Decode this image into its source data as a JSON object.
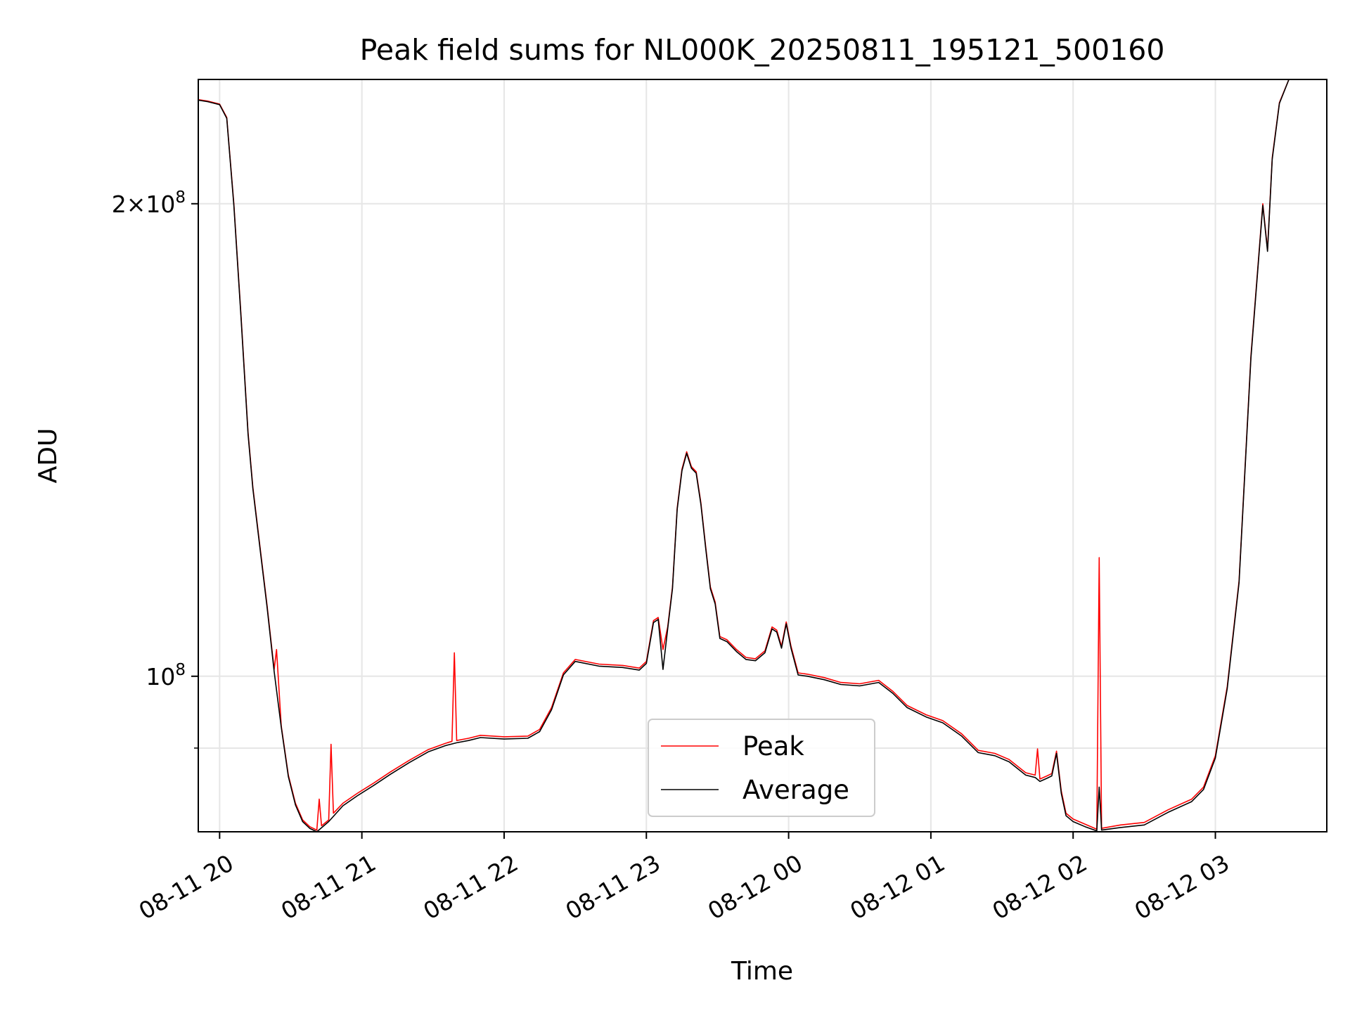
{
  "chart_data": {
    "type": "line",
    "title": "Peak field sums for NL000K_20250811_195121_500160",
    "xlabel": "Time",
    "ylabel": "ADU",
    "y_scale": "log",
    "ylim": [
      79600000,
      240000000
    ],
    "xlim": [
      "2025-08-11 19:51",
      "2025-08-12 03:47"
    ],
    "grid": true,
    "legend_position": "lower center",
    "x_tick_labels": [
      "08-11 20",
      "08-11 21",
      "08-11 22",
      "08-11 23",
      "08-12 00",
      "08-12 01",
      "08-12 02",
      "08-12 03"
    ],
    "x_tick_times": [
      "2025-08-11 20:00",
      "2025-08-11 21:00",
      "2025-08-11 22:00",
      "2025-08-11 23:00",
      "2025-08-12 00:00",
      "2025-08-12 01:00",
      "2025-08-12 02:00",
      "2025-08-12 03:00"
    ],
    "y_major_ticks": [
      {
        "value": 200000000,
        "base": "2×10",
        "exp": "8"
      },
      {
        "value": 100000000,
        "base": "10",
        "exp": "8"
      }
    ],
    "y_minor_ticks": [
      90000000
    ],
    "series": [
      {
        "name": "Peak",
        "color": "#ff0000",
        "points": [
          [
            "2025-08-11 19:51",
            233000000
          ],
          [
            "2025-08-11 19:55",
            232500000
          ],
          [
            "2025-08-11 20:00",
            231500000
          ],
          [
            "2025-08-11 20:03",
            227000000
          ],
          [
            "2025-08-11 20:06",
            200000000
          ],
          [
            "2025-08-11 20:09",
            170000000
          ],
          [
            "2025-08-11 20:12",
            143000000
          ],
          [
            "2025-08-11 20:14",
            132000000
          ],
          [
            "2025-08-11 20:17",
            121000000
          ],
          [
            "2025-08-11 20:20",
            111000000
          ],
          [
            "2025-08-11 20:23",
            101000000
          ],
          [
            "2025-08-11 20:24",
            104000000
          ],
          [
            "2025-08-11 20:26",
            93000000
          ],
          [
            "2025-08-11 20:29",
            86500000
          ],
          [
            "2025-08-11 20:32",
            83000000
          ],
          [
            "2025-08-11 20:35",
            81000000
          ],
          [
            "2025-08-11 20:38",
            80200000
          ],
          [
            "2025-08-11 20:41",
            79800000
          ],
          [
            "2025-08-11 20:42",
            83500000
          ],
          [
            "2025-08-11 20:43",
            80300000
          ],
          [
            "2025-08-11 20:46",
            81000000
          ],
          [
            "2025-08-11 20:47",
            90500000
          ],
          [
            "2025-08-11 20:48",
            81800000
          ],
          [
            "2025-08-11 20:52",
            83000000
          ],
          [
            "2025-08-11 20:58",
            84200000
          ],
          [
            "2025-08-11 21:05",
            85500000
          ],
          [
            "2025-08-11 21:12",
            86900000
          ],
          [
            "2025-08-11 21:20",
            88400000
          ],
          [
            "2025-08-11 21:28",
            89800000
          ],
          [
            "2025-08-11 21:35",
            90600000
          ],
          [
            "2025-08-11 21:38",
            90900000
          ],
          [
            "2025-08-11 21:39",
            103500000
          ],
          [
            "2025-08-11 21:40",
            91000000
          ],
          [
            "2025-08-11 21:45",
            91300000
          ],
          [
            "2025-08-11 21:50",
            91700000
          ],
          [
            "2025-08-11 22:00",
            91500000
          ],
          [
            "2025-08-11 22:10",
            91600000
          ],
          [
            "2025-08-11 22:15",
            92500000
          ],
          [
            "2025-08-11 22:20",
            95500000
          ],
          [
            "2025-08-11 22:25",
            100500000
          ],
          [
            "2025-08-11 22:30",
            102500000
          ],
          [
            "2025-08-11 22:40",
            101800000
          ],
          [
            "2025-08-11 22:50",
            101600000
          ],
          [
            "2025-08-11 22:57",
            101200000
          ],
          [
            "2025-08-11 23:00",
            102200000
          ],
          [
            "2025-08-11 23:03",
            108500000
          ],
          [
            "2025-08-11 23:05",
            109000000
          ],
          [
            "2025-08-11 23:07",
            104000000
          ],
          [
            "2025-08-11 23:09",
            107500000
          ],
          [
            "2025-08-11 23:11",
            114000000
          ],
          [
            "2025-08-11 23:13",
            128000000
          ],
          [
            "2025-08-11 23:15",
            135500000
          ],
          [
            "2025-08-11 23:17",
            139000000
          ],
          [
            "2025-08-11 23:19",
            136000000
          ],
          [
            "2025-08-11 23:21",
            135000000
          ],
          [
            "2025-08-11 23:23",
            129000000
          ],
          [
            "2025-08-11 23:25",
            121000000
          ],
          [
            "2025-08-11 23:27",
            114000000
          ],
          [
            "2025-08-11 23:29",
            111500000
          ],
          [
            "2025-08-11 23:31",
            106000000
          ],
          [
            "2025-08-11 23:34",
            105500000
          ],
          [
            "2025-08-11 23:38",
            104000000
          ],
          [
            "2025-08-11 23:42",
            102800000
          ],
          [
            "2025-08-11 23:46",
            102600000
          ],
          [
            "2025-08-11 23:50",
            103800000
          ],
          [
            "2025-08-11 23:53",
            107500000
          ],
          [
            "2025-08-11 23:55",
            107000000
          ],
          [
            "2025-08-11 23:57",
            104500000
          ],
          [
            "2025-08-11 23:59",
            108300000
          ],
          [
            "2025-08-12 00:01",
            104500000
          ],
          [
            "2025-08-12 00:04",
            100500000
          ],
          [
            "2025-08-12 00:08",
            100300000
          ],
          [
            "2025-08-12 00:15",
            99800000
          ],
          [
            "2025-08-12 00:22",
            99100000
          ],
          [
            "2025-08-12 00:30",
            98900000
          ],
          [
            "2025-08-12 00:38",
            99400000
          ],
          [
            "2025-08-12 00:44",
            97800000
          ],
          [
            "2025-08-12 00:50",
            95800000
          ],
          [
            "2025-08-12 00:58",
            94500000
          ],
          [
            "2025-08-12 01:05",
            93700000
          ],
          [
            "2025-08-12 01:13",
            91900000
          ],
          [
            "2025-08-12 01:20",
            89700000
          ],
          [
            "2025-08-12 01:27",
            89300000
          ],
          [
            "2025-08-12 01:33",
            88500000
          ],
          [
            "2025-08-12 01:40",
            86800000
          ],
          [
            "2025-08-12 01:44",
            86500000
          ],
          [
            "2025-08-12 01:45",
            89900000
          ],
          [
            "2025-08-12 01:46",
            86000000
          ],
          [
            "2025-08-12 01:49",
            86400000
          ],
          [
            "2025-08-12 01:51",
            86700000
          ],
          [
            "2025-08-12 01:53",
            89600000
          ],
          [
            "2025-08-12 01:55",
            84500000
          ],
          [
            "2025-08-12 01:57",
            81800000
          ],
          [
            "2025-08-12 02:00",
            81100000
          ],
          [
            "2025-08-12 02:05",
            80500000
          ],
          [
            "2025-08-12 02:10",
            79900000
          ],
          [
            "2025-08-12 02:11",
            119000000
          ],
          [
            "2025-08-12 02:12",
            80000000
          ],
          [
            "2025-08-12 02:20",
            80400000
          ],
          [
            "2025-08-12 02:30",
            80700000
          ],
          [
            "2025-08-12 02:40",
            82200000
          ],
          [
            "2025-08-12 02:50",
            83500000
          ],
          [
            "2025-08-12 02:55",
            85000000
          ],
          [
            "2025-08-12 03:00",
            89000000
          ],
          [
            "2025-08-12 03:05",
            98500000
          ],
          [
            "2025-08-12 03:10",
            115000000
          ],
          [
            "2025-08-12 03:15",
            160000000
          ],
          [
            "2025-08-12 03:20",
            200000000
          ],
          [
            "2025-08-12 03:22",
            187000000
          ],
          [
            "2025-08-12 03:24",
            214000000
          ],
          [
            "2025-08-12 03:27",
            232000000
          ],
          [
            "2025-08-12 03:31",
            240000000
          ],
          [
            "2025-08-12 03:47",
            240000000
          ]
        ]
      },
      {
        "name": "Average",
        "color": "#000000",
        "points": [
          [
            "2025-08-11 19:51",
            232800000
          ],
          [
            "2025-08-11 19:55",
            232300000
          ],
          [
            "2025-08-11 20:00",
            231300000
          ],
          [
            "2025-08-11 20:03",
            226700000
          ],
          [
            "2025-08-11 20:06",
            199500000
          ],
          [
            "2025-08-11 20:09",
            169500000
          ],
          [
            "2025-08-11 20:12",
            142600000
          ],
          [
            "2025-08-11 20:14",
            131700000
          ],
          [
            "2025-08-11 20:17",
            120700000
          ],
          [
            "2025-08-11 20:20",
            110700000
          ],
          [
            "2025-08-11 20:23",
            100700000
          ],
          [
            "2025-08-11 20:26",
            92800000
          ],
          [
            "2025-08-11 20:29",
            86300000
          ],
          [
            "2025-08-11 20:32",
            82800000
          ],
          [
            "2025-08-11 20:35",
            80800000
          ],
          [
            "2025-08-11 20:38",
            80000000
          ],
          [
            "2025-08-11 20:41",
            79600000
          ],
          [
            "2025-08-11 20:46",
            80800000
          ],
          [
            "2025-08-11 20:52",
            82700000
          ],
          [
            "2025-08-11 20:58",
            83900000
          ],
          [
            "2025-08-11 21:05",
            85200000
          ],
          [
            "2025-08-11 21:12",
            86600000
          ],
          [
            "2025-08-11 21:20",
            88100000
          ],
          [
            "2025-08-11 21:28",
            89500000
          ],
          [
            "2025-08-11 21:35",
            90300000
          ],
          [
            "2025-08-11 21:40",
            90700000
          ],
          [
            "2025-08-11 21:45",
            91000000
          ],
          [
            "2025-08-11 21:50",
            91400000
          ],
          [
            "2025-08-11 22:00",
            91200000
          ],
          [
            "2025-08-11 22:10",
            91300000
          ],
          [
            "2025-08-11 22:15",
            92200000
          ],
          [
            "2025-08-11 22:20",
            95200000
          ],
          [
            "2025-08-11 22:25",
            100200000
          ],
          [
            "2025-08-11 22:30",
            102200000
          ],
          [
            "2025-08-11 22:40",
            101500000
          ],
          [
            "2025-08-11 22:50",
            101300000
          ],
          [
            "2025-08-11 22:57",
            100900000
          ],
          [
            "2025-08-11 23:00",
            101900000
          ],
          [
            "2025-08-11 23:03",
            108200000
          ],
          [
            "2025-08-11 23:05",
            108700000
          ],
          [
            "2025-08-11 23:07",
            101000000
          ],
          [
            "2025-08-11 23:09",
            107200000
          ],
          [
            "2025-08-11 23:11",
            113700000
          ],
          [
            "2025-08-11 23:13",
            127700000
          ],
          [
            "2025-08-11 23:15",
            135200000
          ],
          [
            "2025-08-11 23:17",
            138700000
          ],
          [
            "2025-08-11 23:19",
            135700000
          ],
          [
            "2025-08-11 23:21",
            134700000
          ],
          [
            "2025-08-11 23:23",
            128700000
          ],
          [
            "2025-08-11 23:25",
            120700000
          ],
          [
            "2025-08-11 23:27",
            113700000
          ],
          [
            "2025-08-11 23:29",
            111200000
          ],
          [
            "2025-08-11 23:31",
            105700000
          ],
          [
            "2025-08-11 23:34",
            105200000
          ],
          [
            "2025-08-11 23:38",
            103700000
          ],
          [
            "2025-08-11 23:42",
            102500000
          ],
          [
            "2025-08-11 23:46",
            102300000
          ],
          [
            "2025-08-11 23:50",
            103500000
          ],
          [
            "2025-08-11 23:53",
            107200000
          ],
          [
            "2025-08-11 23:55",
            106700000
          ],
          [
            "2025-08-11 23:57",
            104200000
          ],
          [
            "2025-08-11 23:59",
            108000000
          ],
          [
            "2025-08-12 00:01",
            104200000
          ],
          [
            "2025-08-12 00:04",
            100200000
          ],
          [
            "2025-08-12 00:08",
            100000000
          ],
          [
            "2025-08-12 00:15",
            99500000
          ],
          [
            "2025-08-12 00:22",
            98800000
          ],
          [
            "2025-08-12 00:30",
            98600000
          ],
          [
            "2025-08-12 00:38",
            99100000
          ],
          [
            "2025-08-12 00:44",
            97500000
          ],
          [
            "2025-08-12 00:50",
            95500000
          ],
          [
            "2025-08-12 00:58",
            94200000
          ],
          [
            "2025-08-12 01:05",
            93400000
          ],
          [
            "2025-08-12 01:13",
            91600000
          ],
          [
            "2025-08-12 01:20",
            89400000
          ],
          [
            "2025-08-12 01:27",
            89000000
          ],
          [
            "2025-08-12 01:33",
            88200000
          ],
          [
            "2025-08-12 01:40",
            86500000
          ],
          [
            "2025-08-12 01:44",
            86200000
          ],
          [
            "2025-08-12 01:46",
            85700000
          ],
          [
            "2025-08-12 01:49",
            86100000
          ],
          [
            "2025-08-12 01:51",
            86400000
          ],
          [
            "2025-08-12 01:53",
            89300000
          ],
          [
            "2025-08-12 01:55",
            84200000
          ],
          [
            "2025-08-12 01:57",
            81500000
          ],
          [
            "2025-08-12 02:00",
            80800000
          ],
          [
            "2025-08-12 02:05",
            80200000
          ],
          [
            "2025-08-12 02:10",
            79700000
          ],
          [
            "2025-08-12 02:11",
            85000000
          ],
          [
            "2025-08-12 02:12",
            79800000
          ],
          [
            "2025-08-12 02:20",
            80100000
          ],
          [
            "2025-08-12 02:30",
            80400000
          ],
          [
            "2025-08-12 02:40",
            81900000
          ],
          [
            "2025-08-12 02:50",
            83200000
          ],
          [
            "2025-08-12 02:55",
            84700000
          ],
          [
            "2025-08-12 03:00",
            88700000
          ],
          [
            "2025-08-12 03:05",
            98200000
          ],
          [
            "2025-08-12 03:10",
            114700000
          ],
          [
            "2025-08-12 03:15",
            159500000
          ],
          [
            "2025-08-12 03:20",
            199500000
          ],
          [
            "2025-08-12 03:22",
            186500000
          ],
          [
            "2025-08-12 03:24",
            213500000
          ],
          [
            "2025-08-12 03:27",
            231700000
          ],
          [
            "2025-08-12 03:31",
            240000000
          ],
          [
            "2025-08-12 03:47",
            240000000
          ]
        ]
      }
    ]
  }
}
